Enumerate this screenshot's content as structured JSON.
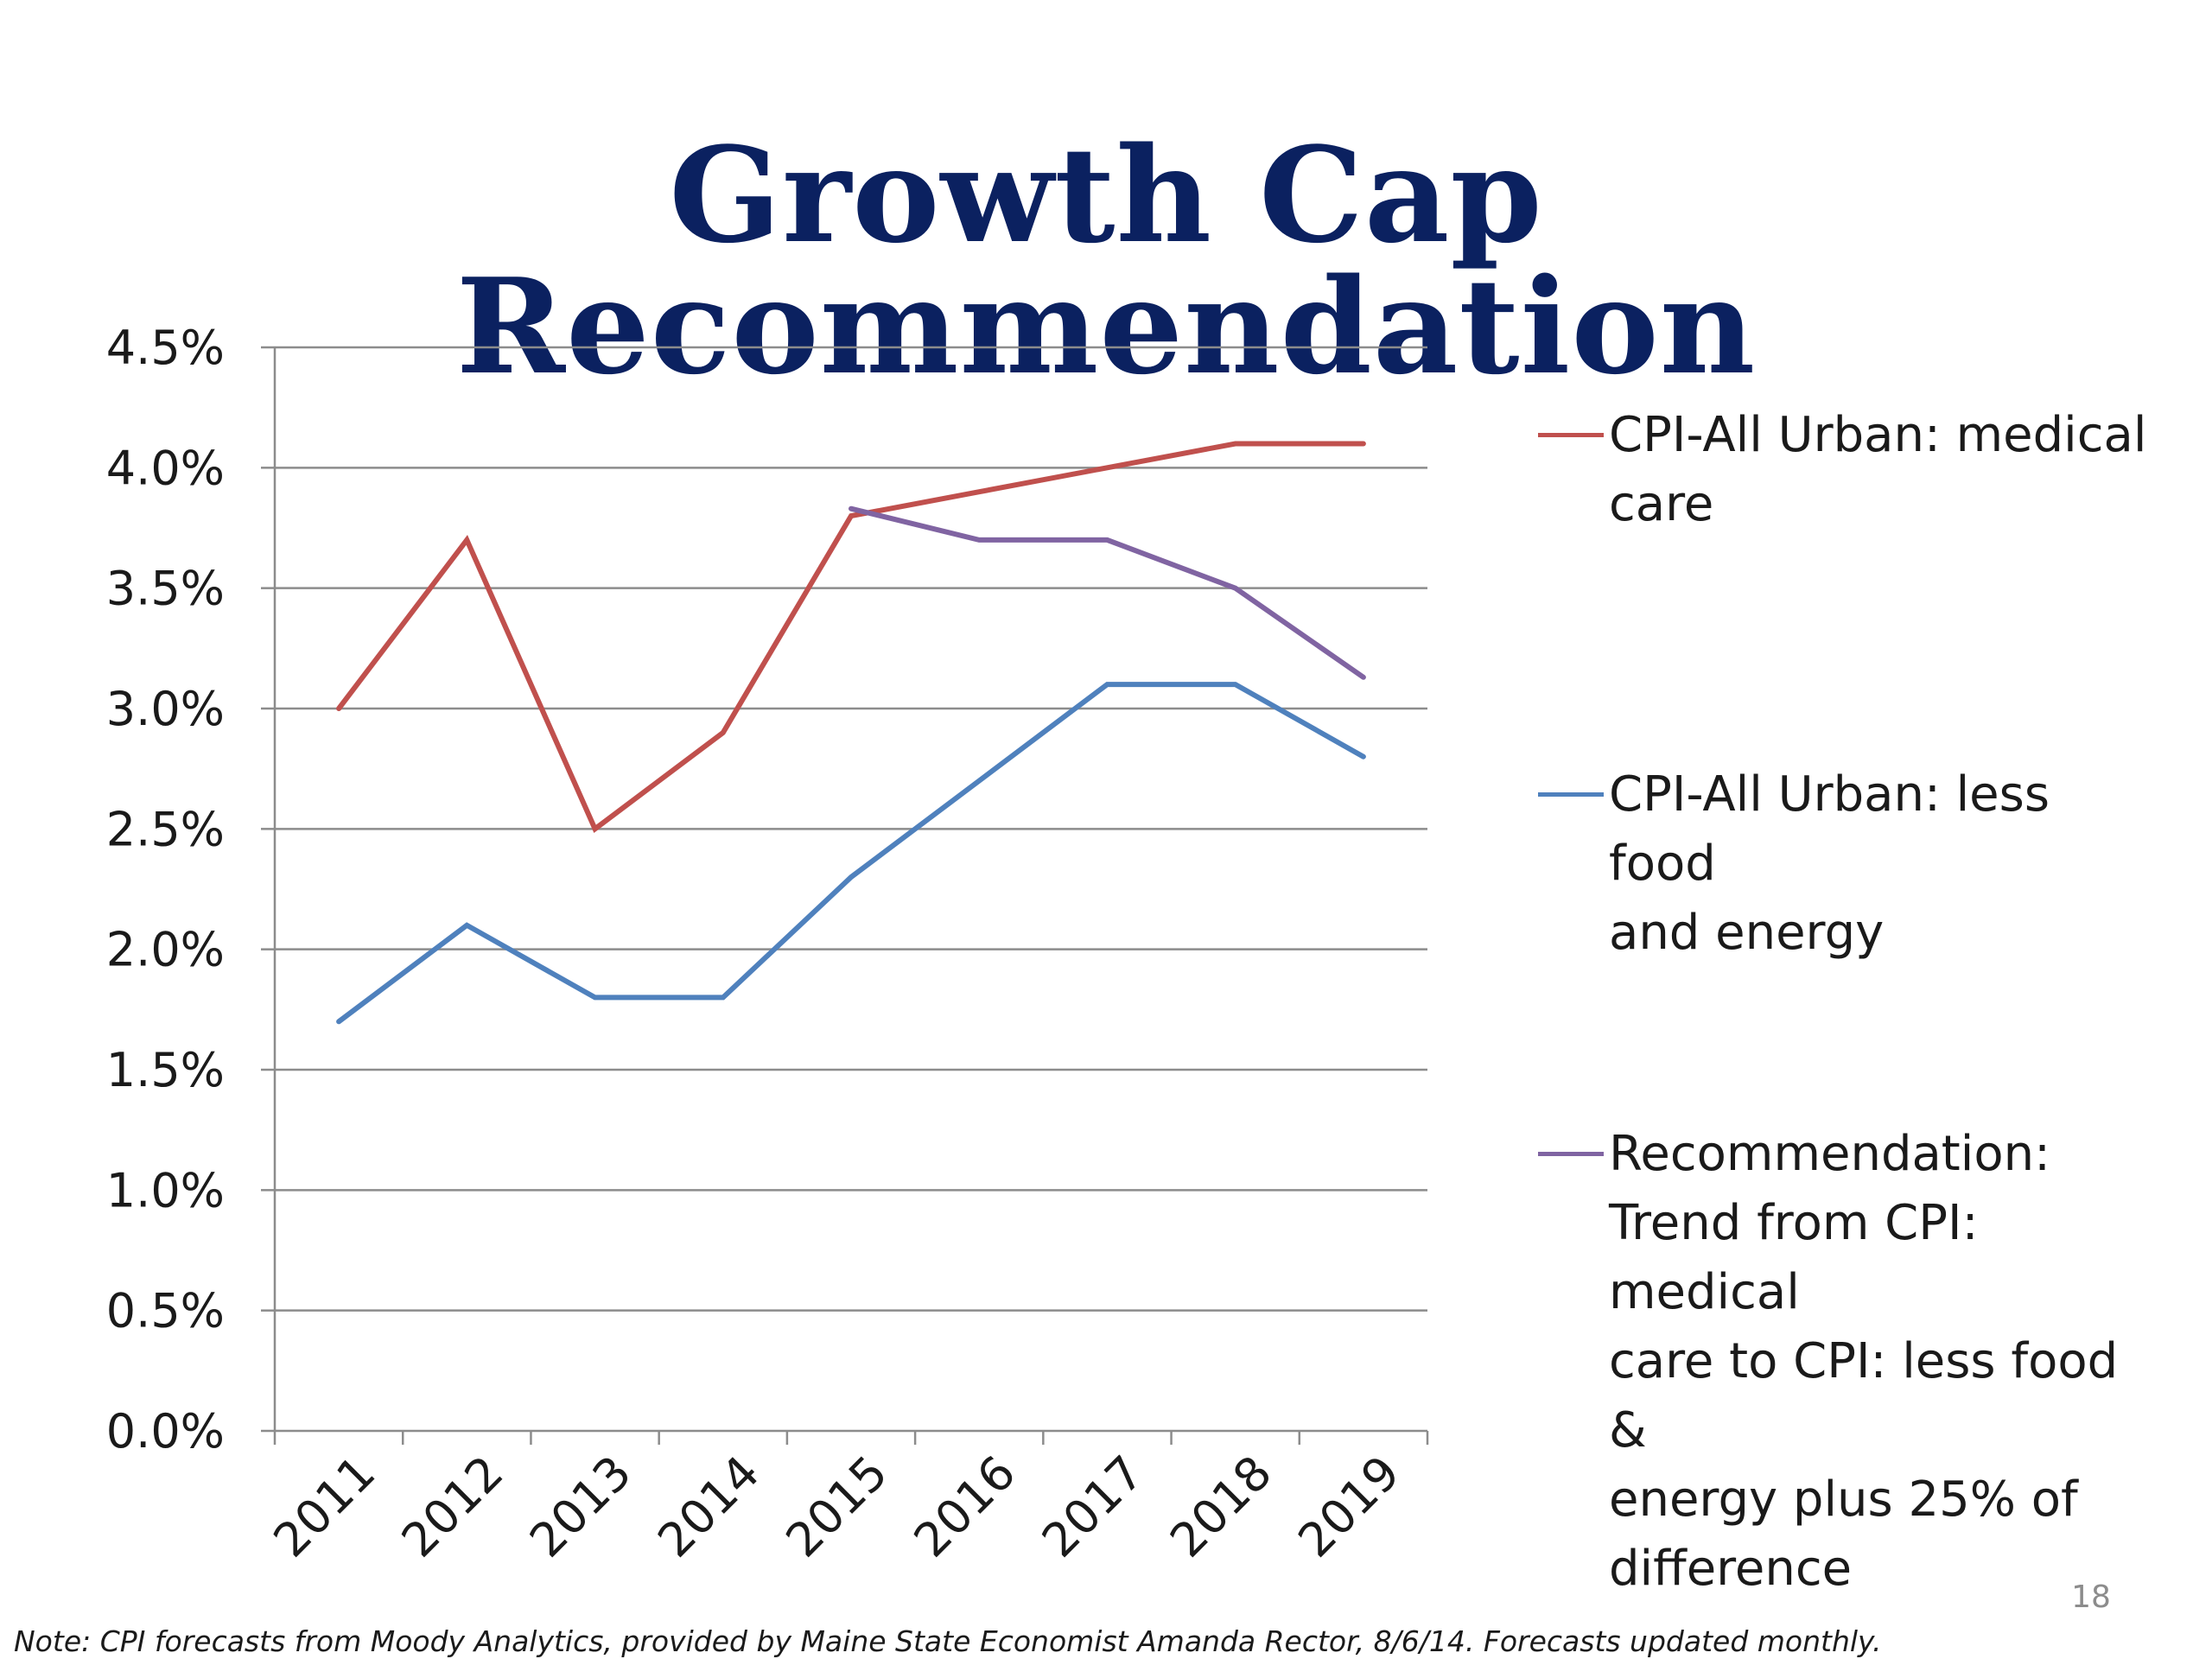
{
  "slide": {
    "title": "Growth Cap Recommendation",
    "page_number": "18",
    "footnote": "Note: CPI forecasts from Moody Analytics, provided by Maine State Economist Amanda Rector, 8/6/14. Forecasts updated monthly."
  },
  "chart_data": {
    "type": "line",
    "title": "",
    "xlabel": "",
    "ylabel": "",
    "x": [
      "2011",
      "2012",
      "2013",
      "2014",
      "2015",
      "2016",
      "2017",
      "2018",
      "2019"
    ],
    "ylim": [
      0.0,
      4.5
    ],
    "yticks": [
      0.0,
      0.5,
      1.0,
      1.5,
      2.0,
      2.5,
      3.0,
      3.5,
      4.0,
      4.5
    ],
    "ytick_labels": [
      "0.0%",
      "0.5%",
      "1.0%",
      "1.5%",
      "2.0%",
      "2.5%",
      "3.0%",
      "3.5%",
      "4.0%",
      "4.5%"
    ],
    "grid": true,
    "legend_position": "right",
    "series": [
      {
        "name": "CPI-All Urban: medical care",
        "legend_lines": [
          "CPI-All Urban: medical",
          "care"
        ],
        "color": "#c0504d",
        "values": [
          3.0,
          3.7,
          2.5,
          2.9,
          3.8,
          3.9,
          4.0,
          4.1,
          4.1
        ]
      },
      {
        "name": "CPI-All Urban: less food and energy",
        "legend_lines": [
          "CPI-All Urban: less food",
          "and energy"
        ],
        "color": "#4f81bd",
        "values": [
          1.7,
          2.1,
          1.8,
          1.8,
          2.3,
          2.7,
          3.1,
          3.1,
          2.8
        ]
      },
      {
        "name": "Recommendation: Trend from CPI: medical care to CPI: less food & energy plus 25% of difference",
        "legend_lines": [
          "Recommendation:",
          "Trend from CPI: medical",
          "care to CPI: less food &",
          "energy plus 25% of",
          "difference"
        ],
        "color": "#8064a2",
        "values": [
          null,
          null,
          null,
          null,
          3.83,
          3.7,
          3.7,
          3.5,
          3.13
        ]
      }
    ]
  }
}
